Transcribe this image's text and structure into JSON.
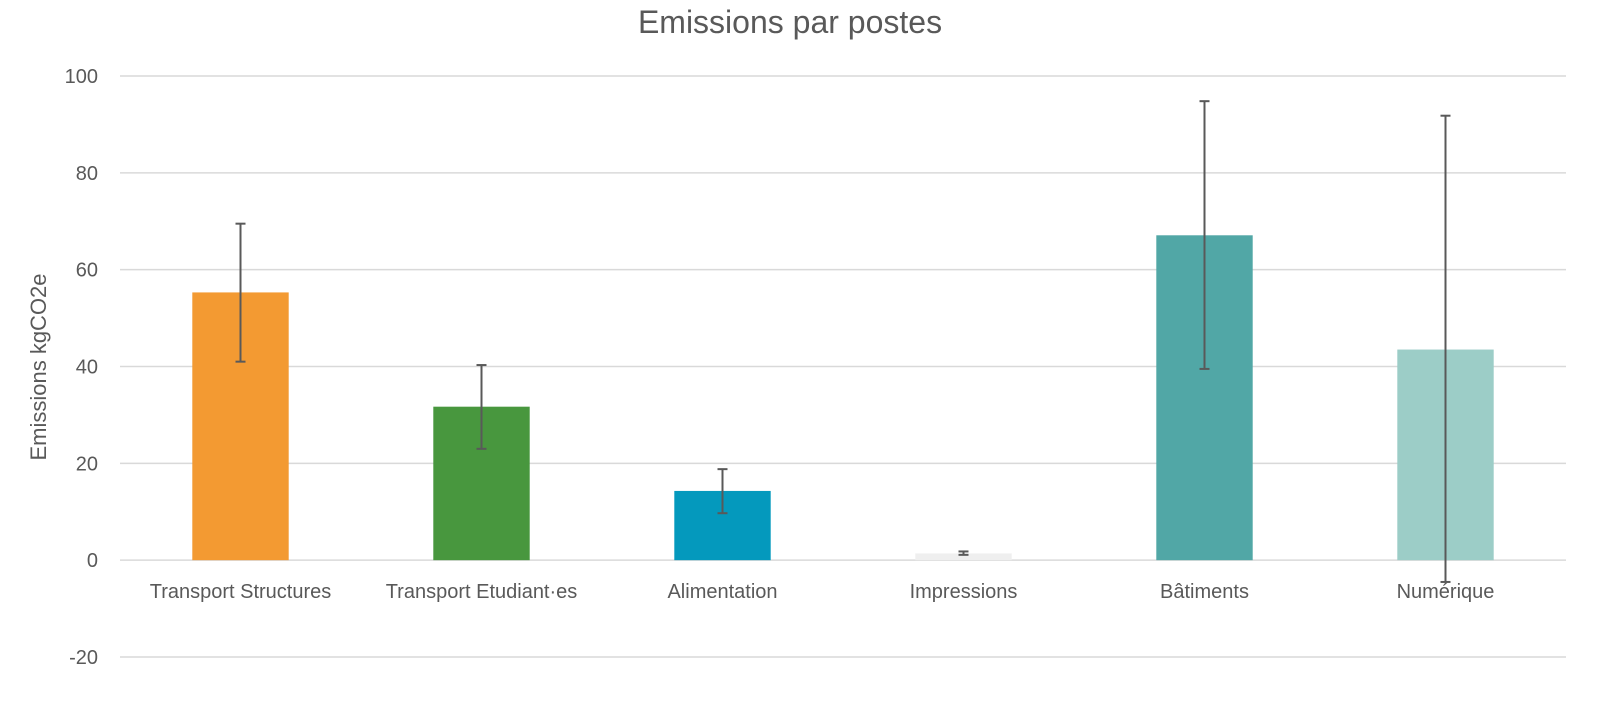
{
  "chart_data": {
    "type": "bar",
    "title": "Emissions par postes",
    "xlabel": "",
    "ylabel": "Emissions kgCO2e",
    "ylim": [
      -20,
      100
    ],
    "yticks": [
      -20,
      0,
      20,
      40,
      60,
      80,
      100
    ],
    "grid": true,
    "legend": "none",
    "categories": [
      "Transport Structures",
      "Transport Etudiant·es",
      "Alimentation",
      "Impressions",
      "Bâtiments",
      "Numérique"
    ],
    "values": [
      55.3,
      31.7,
      14.3,
      1.4,
      67.1,
      43.5
    ],
    "error_low": [
      41.0,
      23.0,
      9.7,
      1.1,
      39.5,
      -4.5
    ],
    "error_high": [
      69.5,
      40.3,
      18.8,
      1.8,
      94.8,
      91.8
    ],
    "colors": [
      "#f39a32",
      "#48973e",
      "#0499bd",
      "#efefef",
      "#51a7a6",
      "#9ccdc7"
    ],
    "error_color": "#595959"
  }
}
